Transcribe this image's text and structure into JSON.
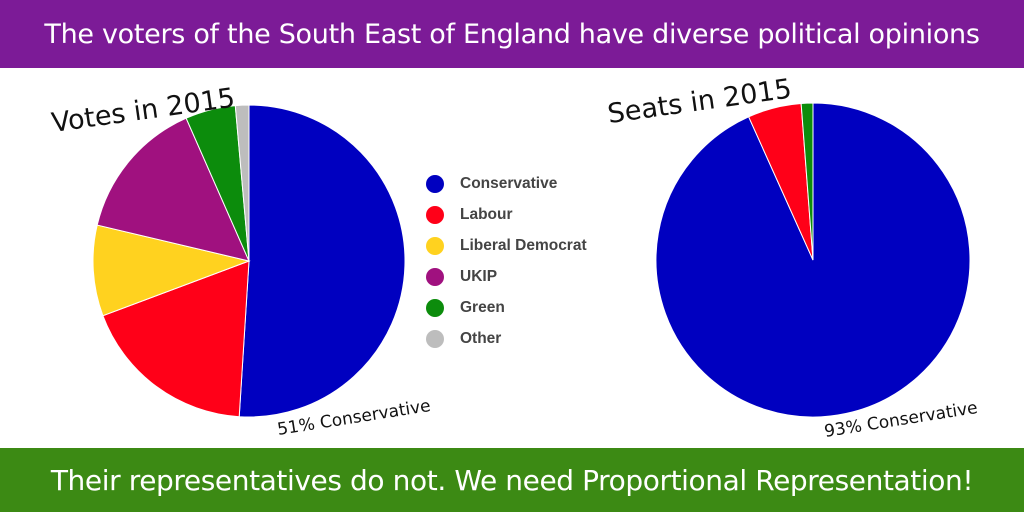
{
  "header": {
    "title": "The voters of the South East of England have diverse political opinions",
    "bg": "#7c1b97"
  },
  "footer": {
    "text": "Their representatives do not. We need Proportional Representation!",
    "bg": "#3c8a14"
  },
  "chart_data": [
    {
      "type": "pie",
      "title": "Votes in 2015",
      "annotation": "51% Conservative",
      "legend_position": "right",
      "categories": [
        "Conservative",
        "Labour",
        "Liberal Democrat",
        "UKIP",
        "Green",
        "Other"
      ],
      "values": [
        51,
        18.3,
        9.4,
        14.7,
        5.2,
        1.4
      ],
      "colors": [
        "#0000c0",
        "#ff0018",
        "#ffd21f",
        "#a0117f",
        "#0c8c0c",
        "#bdbdbd"
      ]
    },
    {
      "type": "pie",
      "title": "Seats in 2015",
      "annotation": "93% Conservative",
      "categories": [
        "Conservative",
        "Labour",
        "Liberal Democrat",
        "UKIP",
        "Green",
        "Other"
      ],
      "values": [
        93,
        5.5,
        0,
        0,
        1.2,
        0
      ],
      "colors": [
        "#0000c0",
        "#ff0018",
        "#ffd21f",
        "#a0117f",
        "#0c8c0c",
        "#bdbdbd"
      ]
    }
  ],
  "legend": {
    "items": [
      {
        "label": "Conservative",
        "color": "#0000c0"
      },
      {
        "label": "Labour",
        "color": "#ff0018"
      },
      {
        "label": "Liberal Democrat",
        "color": "#ffd21f"
      },
      {
        "label": "UKIP",
        "color": "#a0117f"
      },
      {
        "label": "Green",
        "color": "#0c8c0c"
      },
      {
        "label": "Other",
        "color": "#bdbdbd"
      }
    ]
  }
}
